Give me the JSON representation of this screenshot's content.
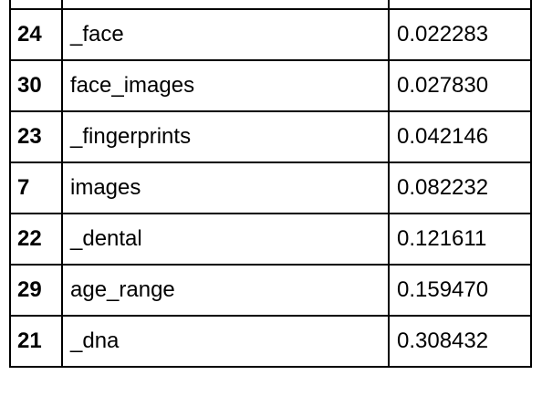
{
  "table": {
    "rows": [
      {
        "index": "24",
        "name": "_face",
        "value": "0.022283"
      },
      {
        "index": "30",
        "name": "face_images",
        "value": "0.027830"
      },
      {
        "index": "23",
        "name": "_fingerprints",
        "value": "0.042146"
      },
      {
        "index": "7",
        "name": "images",
        "value": "0.082232"
      },
      {
        "index": "22",
        "name": "_dental",
        "value": "0.121611"
      },
      {
        "index": "29",
        "name": "age_range",
        "value": "0.159470"
      },
      {
        "index": "21",
        "name": "_dna",
        "value": "0.308432"
      }
    ]
  }
}
